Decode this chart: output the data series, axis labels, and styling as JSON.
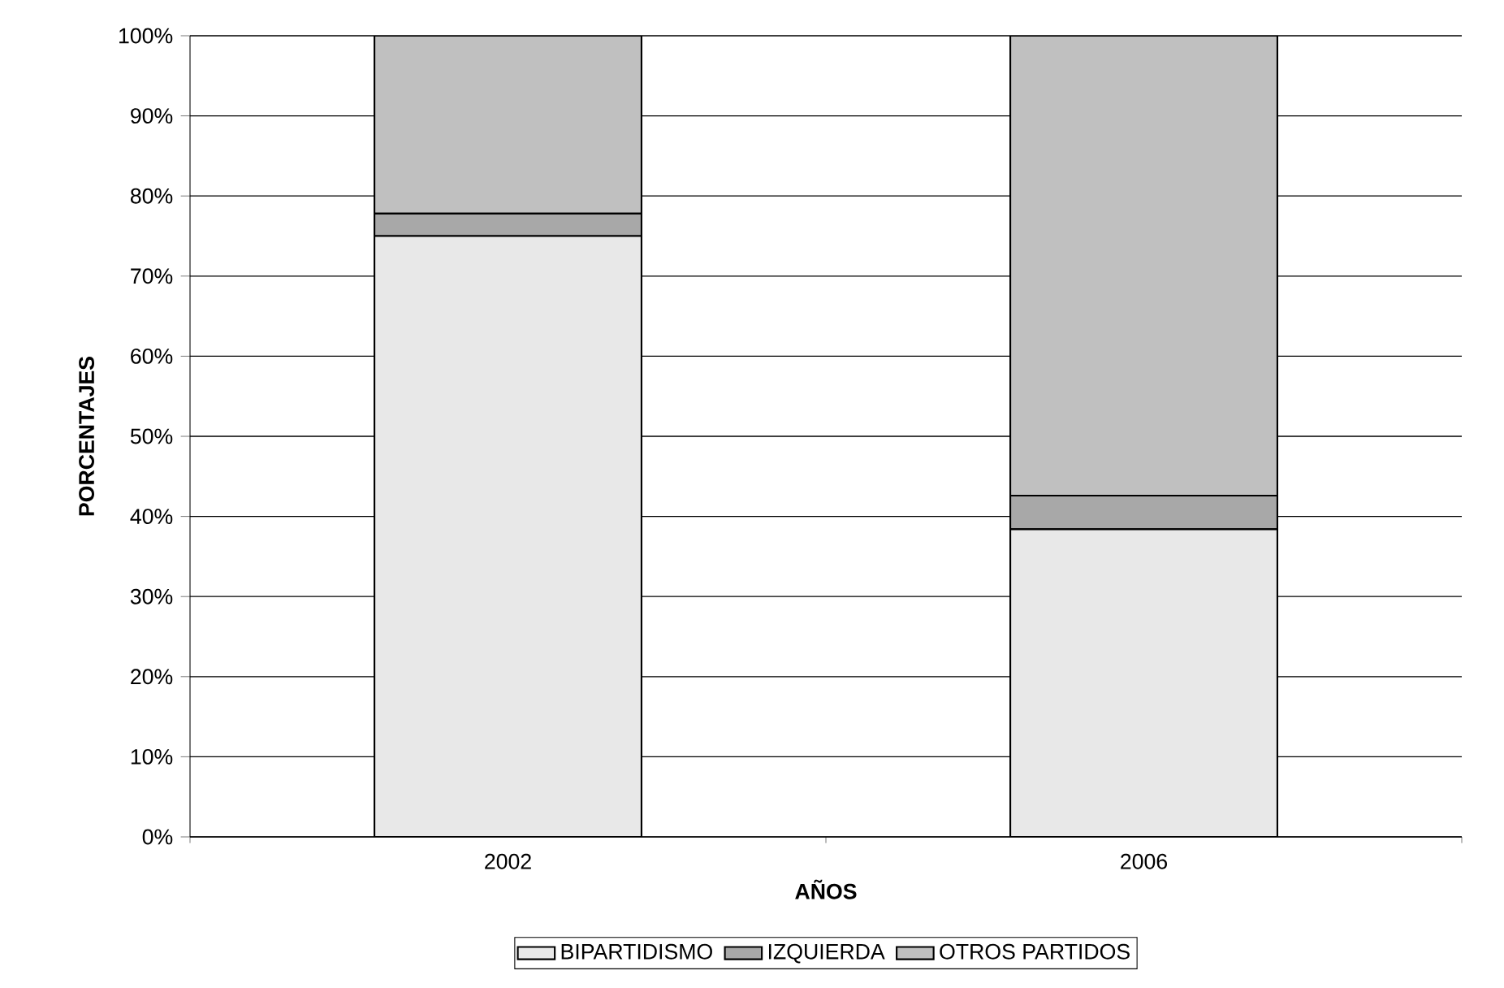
{
  "chart_data": {
    "type": "bar",
    "stacked": true,
    "xlabel": "AÑOS",
    "ylabel": "PORCENTAJES",
    "categories": [
      "2002",
      "2006"
    ],
    "series": [
      {
        "name": "BIPARTIDISMO",
        "color": "#e8e8e8",
        "values": [
          75.0,
          38.4
        ]
      },
      {
        "name": "IZQUIERDA",
        "color": "#a8a8a8",
        "values": [
          2.8,
          4.2
        ]
      },
      {
        "name": "OTROS PARTIDOS",
        "color": "#c0c0c0",
        "values": [
          22.2,
          57.4
        ]
      }
    ],
    "ylim": [
      0,
      100
    ],
    "yticks": [
      {
        "value": 0,
        "label": "0%"
      },
      {
        "value": 10,
        "label": "10%"
      },
      {
        "value": 20,
        "label": "20%"
      },
      {
        "value": 30,
        "label": "30%"
      },
      {
        "value": 40,
        "label": "40%"
      },
      {
        "value": 50,
        "label": "50%"
      },
      {
        "value": 60,
        "label": "60%"
      },
      {
        "value": 70,
        "label": "70%"
      },
      {
        "value": 80,
        "label": "80%"
      },
      {
        "value": 90,
        "label": "90%"
      },
      {
        "value": 100,
        "label": "100%"
      }
    ],
    "grid": "y",
    "legend": "bottom"
  }
}
